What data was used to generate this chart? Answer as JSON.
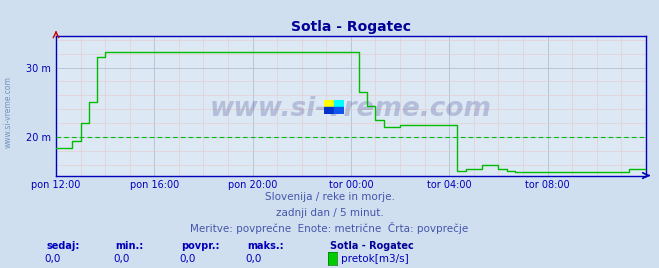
{
  "title": "Sotla - Rogatec",
  "title_color": "#000099",
  "background_color": "#d0dff0",
  "plot_background": "#dce8f4",
  "grid_color_major": "#aab8cc",
  "grid_color_minor": "#e8c8c8",
  "line_color": "#00bb00",
  "axis_color": "#0000bb",
  "yticks": [
    20,
    30
  ],
  "ytick_labels": [
    "20 m",
    "30 m"
  ],
  "ylim": [
    14.5,
    34.5
  ],
  "xlim": [
    0,
    288
  ],
  "xtick_positions": [
    0,
    48,
    96,
    144,
    192,
    240
  ],
  "xtick_labels": [
    "pon 12:00",
    "pon 16:00",
    "pon 20:00",
    "tor 00:00",
    "tor 04:00",
    "tor 08:00"
  ],
  "watermark_text": "www.si-vreme.com",
  "watermark_color": "#000066",
  "watermark_alpha": 0.18,
  "info_line1": "Slovenija / reke in morje.",
  "info_line2": "zadnji dan / 5 minut.",
  "info_line3": "Meritve: povprečne  Enote: metrične  Črta: povprečje",
  "info_color": "#4455aa",
  "footer_labels": [
    "sedaj:",
    "min.:",
    "povpr.:",
    "maks.:"
  ],
  "footer_values": [
    "0,0",
    "0,0",
    "0,0",
    "0,0"
  ],
  "footer_station": "Sotla - Rogatec",
  "footer_legend": "pretok[m3/s]",
  "footer_legend_color": "#00cc00",
  "sidebar_text": "www.si-vreme.com",
  "sidebar_color": "#5577aa",
  "dpi": 100,
  "figw": 6.59,
  "figh": 2.68,
  "data_x": [
    0,
    4,
    8,
    12,
    16,
    20,
    24,
    28,
    32,
    36,
    40,
    44,
    48,
    52,
    56,
    60,
    64,
    68,
    72,
    76,
    80,
    84,
    88,
    92,
    96,
    100,
    104,
    108,
    112,
    116,
    120,
    124,
    128,
    132,
    136,
    140,
    144,
    148,
    152,
    156,
    160,
    164,
    168,
    172,
    176,
    180,
    184,
    188,
    192,
    196,
    200,
    204,
    208,
    212,
    216,
    220,
    224,
    228,
    232,
    236,
    240,
    244,
    248,
    252,
    256,
    260,
    264,
    268,
    272,
    276,
    280,
    284,
    288
  ],
  "data_y": [
    18.5,
    18.5,
    19.5,
    22.0,
    25.0,
    31.5,
    32.3,
    32.3,
    32.3,
    32.3,
    32.3,
    32.3,
    32.3,
    32.3,
    32.3,
    32.3,
    32.3,
    32.3,
    32.3,
    32.3,
    32.3,
    32.3,
    32.3,
    32.3,
    32.3,
    32.3,
    32.3,
    32.3,
    32.3,
    32.3,
    32.3,
    32.3,
    32.3,
    32.3,
    32.3,
    32.3,
    32.3,
    26.5,
    24.5,
    22.5,
    21.5,
    21.5,
    21.8,
    21.8,
    21.8,
    21.8,
    21.8,
    21.8,
    21.8,
    15.2,
    15.5,
    15.5,
    16.0,
    16.0,
    15.5,
    15.2,
    15.0,
    15.0,
    15.0,
    15.0,
    15.0,
    15.0,
    15.0,
    15.0,
    15.0,
    15.0,
    15.0,
    15.0,
    15.0,
    15.0,
    15.5,
    15.5,
    15.5
  ],
  "dashed_y": 20.0,
  "dashed_color": "#00bb00",
  "arrow_color": "#cc0000"
}
